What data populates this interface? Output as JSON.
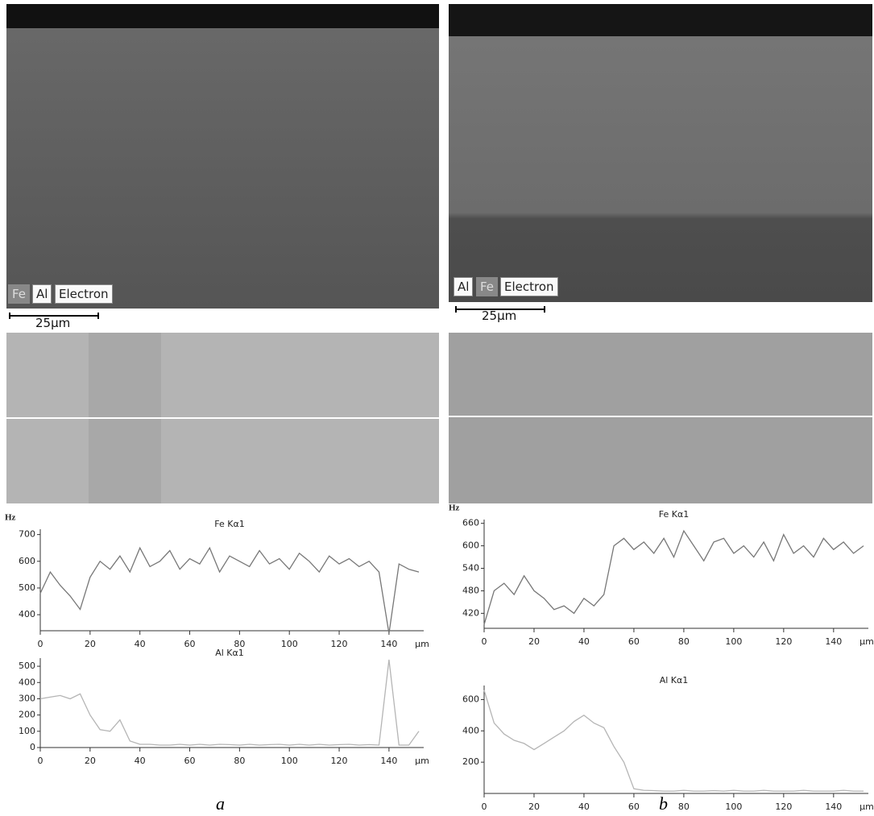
{
  "panels": [
    {
      "label": "a",
      "image_tags": [
        "Fe",
        "Al",
        "Electron"
      ],
      "scale_bar": "25μm"
    },
    {
      "label": "b",
      "image_tags": [
        "Al",
        "Fe",
        "Electron"
      ],
      "scale_bar": "25μm"
    }
  ],
  "chart_data": [
    {
      "type": "line",
      "ylabel": "Hz",
      "xlabel": "μm",
      "x": [
        0,
        4,
        8,
        12,
        16,
        20,
        24,
        28,
        32,
        36,
        40,
        44,
        48,
        52,
        56,
        60,
        64,
        68,
        72,
        76,
        80,
        84,
        88,
        92,
        96,
        100,
        104,
        108,
        112,
        116,
        120,
        124,
        128,
        132,
        136,
        140,
        144,
        148,
        152
      ],
      "series": [
        {
          "name": "Fe Kα1",
          "color": "#777777",
          "values": [
            480,
            560,
            510,
            470,
            420,
            540,
            600,
            570,
            620,
            560,
            650,
            580,
            600,
            640,
            570,
            610,
            590,
            650,
            560,
            620,
            600,
            580,
            640,
            590,
            610,
            570,
            630,
            600,
            560,
            620,
            590,
            610,
            580,
            600,
            560,
            330,
            590,
            570,
            560
          ]
        }
      ],
      "xlim": [
        0,
        152
      ],
      "xticks": [
        0,
        20,
        40,
        60,
        80,
        100,
        120,
        140
      ],
      "ylim": [
        340,
        720
      ],
      "yticks": [
        400,
        500,
        600,
        700
      ]
    },
    {
      "type": "line",
      "xlabel": "μm",
      "x": [
        0,
        4,
        8,
        12,
        16,
        20,
        24,
        28,
        32,
        36,
        40,
        44,
        48,
        52,
        56,
        60,
        64,
        68,
        72,
        76,
        80,
        84,
        88,
        92,
        96,
        100,
        104,
        108,
        112,
        116,
        120,
        124,
        128,
        132,
        136,
        140,
        144,
        148,
        152
      ],
      "series": [
        {
          "name": "Al Kα1",
          "color": "#b5b5b5",
          "values": [
            300,
            310,
            320,
            300,
            330,
            200,
            110,
            100,
            170,
            40,
            20,
            20,
            15,
            15,
            20,
            15,
            20,
            15,
            20,
            18,
            15,
            20,
            15,
            18,
            20,
            15,
            20,
            15,
            20,
            15,
            18,
            20,
            15,
            18,
            15,
            540,
            15,
            15,
            100
          ]
        }
      ],
      "xlim": [
        0,
        152
      ],
      "xticks": [
        0,
        20,
        40,
        60,
        80,
        100,
        120,
        140
      ],
      "ylim": [
        0,
        550
      ],
      "yticks": [
        0,
        100,
        200,
        300,
        400,
        500
      ]
    },
    {
      "type": "line",
      "ylabel": "Hz",
      "xlabel": "μm",
      "x": [
        0,
        4,
        8,
        12,
        16,
        20,
        24,
        28,
        32,
        36,
        40,
        44,
        48,
        52,
        56,
        60,
        64,
        68,
        72,
        76,
        80,
        84,
        88,
        92,
        96,
        100,
        104,
        108,
        112,
        116,
        120,
        124,
        128,
        132,
        136,
        140,
        144,
        148,
        152
      ],
      "series": [
        {
          "name": "Fe Kα1",
          "color": "#777777",
          "values": [
            390,
            480,
            500,
            470,
            520,
            480,
            460,
            430,
            440,
            420,
            460,
            440,
            470,
            600,
            620,
            590,
            610,
            580,
            620,
            570,
            640,
            600,
            560,
            610,
            620,
            580,
            600,
            570,
            610,
            560,
            630,
            580,
            600,
            570,
            620,
            590,
            610,
            580,
            600
          ]
        }
      ],
      "xlim": [
        0,
        152
      ],
      "xticks": [
        0,
        20,
        40,
        60,
        80,
        100,
        120,
        140
      ],
      "ylim": [
        380,
        670
      ],
      "yticks": [
        420,
        480,
        540,
        600,
        660
      ]
    },
    {
      "type": "line",
      "xlabel": "μm",
      "x": [
        0,
        4,
        8,
        12,
        16,
        20,
        24,
        28,
        32,
        36,
        40,
        44,
        48,
        52,
        56,
        60,
        64,
        68,
        72,
        76,
        80,
        84,
        88,
        92,
        96,
        100,
        104,
        108,
        112,
        116,
        120,
        124,
        128,
        132,
        136,
        140,
        144,
        148,
        152
      ],
      "series": [
        {
          "name": "Al Kα1",
          "color": "#b5b5b5",
          "values": [
            660,
            450,
            380,
            340,
            320,
            280,
            320,
            360,
            400,
            460,
            500,
            450,
            420,
            300,
            200,
            30,
            20,
            18,
            15,
            15,
            20,
            15,
            15,
            18,
            15,
            20,
            15,
            15,
            20,
            15,
            15,
            15,
            20,
            15,
            15,
            15,
            20,
            15,
            15
          ]
        }
      ],
      "xlim": [
        0,
        152
      ],
      "xticks": [
        0,
        20,
        40,
        60,
        80,
        100,
        120,
        140
      ],
      "ylim": [
        0,
        690
      ],
      "yticks": [
        200,
        400,
        600
      ]
    }
  ]
}
